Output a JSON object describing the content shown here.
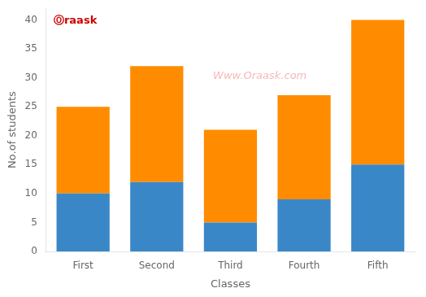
{
  "chart_data": {
    "type": "bar",
    "stacked": true,
    "categories": [
      "First",
      "Second",
      "Third",
      "Fourth",
      "Fifth"
    ],
    "series": [
      {
        "color": "#3a87c8",
        "values": [
          10,
          12,
          5,
          9,
          15
        ]
      },
      {
        "color": "#ff8c00",
        "values": [
          15,
          20,
          16,
          18,
          25
        ]
      }
    ],
    "xlabel": "Classes",
    "ylabel": "No.of students",
    "ylim": [
      0,
      42
    ],
    "yticks": [
      0,
      5,
      10,
      15,
      20,
      25,
      30,
      35,
      40
    ],
    "grid": false,
    "annotations": [
      {
        "text": "Www.Oraask.com",
        "color": "#f5b8b8"
      },
      {
        "text": "Ⓞraask",
        "color": "#cc0000"
      }
    ]
  }
}
